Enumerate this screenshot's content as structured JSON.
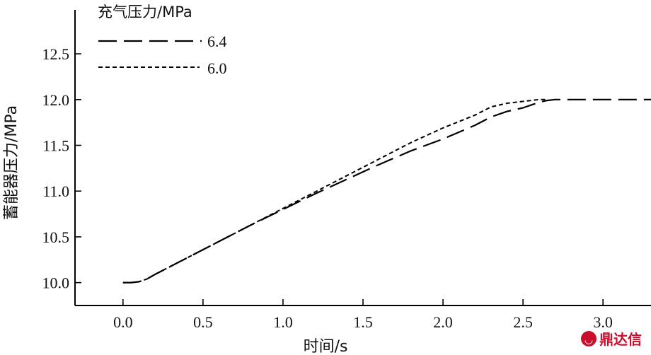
{
  "chart_data": {
    "type": "line",
    "xlabel": "时间/s",
    "ylabel": "蓄能器压力/MPa",
    "xlim": [
      -0.3,
      3.3
    ],
    "ylim": [
      9.75,
      12.98
    ],
    "x_ticks": [
      0.0,
      0.5,
      1.0,
      1.5,
      2.0,
      2.5,
      3.0
    ],
    "x_tick_labels": [
      "0.0",
      "0.5",
      "1.0",
      "1.5",
      "2.0",
      "2.5",
      "3.0"
    ],
    "y_ticks": [
      10.0,
      10.5,
      11.0,
      11.5,
      12.0,
      12.5
    ],
    "y_tick_labels": [
      "10.0",
      "10.5",
      "11.0",
      "11.5",
      "12.0",
      "12.5"
    ],
    "grid": false,
    "legend": {
      "title": "充气压力/MPa",
      "position": "top-left"
    },
    "series": [
      {
        "name": "6.4",
        "style": "long-dash",
        "color": "#000000",
        "x": [
          0.0,
          0.05,
          0.1,
          0.15,
          0.2,
          0.4,
          0.6,
          0.8,
          1.0,
          1.2,
          1.4,
          1.6,
          1.8,
          2.0,
          2.2,
          2.3,
          2.4,
          2.5,
          2.55,
          2.6,
          2.65,
          2.7,
          2.8,
          3.0,
          3.3
        ],
        "y": [
          10.0,
          10.0,
          10.01,
          10.04,
          10.09,
          10.27,
          10.45,
          10.63,
          10.8,
          10.97,
          11.13,
          11.29,
          11.44,
          11.57,
          11.72,
          11.81,
          11.87,
          11.91,
          11.94,
          11.97,
          11.99,
          12.0,
          12.0,
          12.0,
          12.0
        ]
      },
      {
        "name": "6.0",
        "style": "short-dash",
        "color": "#000000",
        "x": [
          0.0,
          0.05,
          0.1,
          0.15,
          0.2,
          0.4,
          0.6,
          0.8,
          1.0,
          1.2,
          1.4,
          1.6,
          1.8,
          2.0,
          2.2,
          2.3,
          2.4,
          2.5,
          2.55,
          2.6,
          2.65
        ],
        "y": [
          10.0,
          10.0,
          10.01,
          10.04,
          10.09,
          10.27,
          10.45,
          10.63,
          10.81,
          10.99,
          11.17,
          11.35,
          11.53,
          11.69,
          11.83,
          11.92,
          11.96,
          11.98,
          11.99,
          12.0,
          12.0
        ]
      }
    ]
  },
  "watermark": {
    "text": "鼎达信",
    "color": "#c8102e"
  }
}
